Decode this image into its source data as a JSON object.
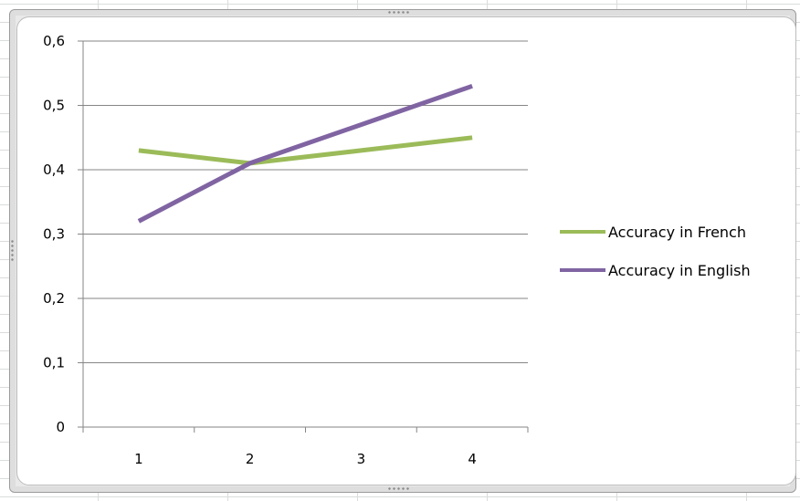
{
  "chart_data": {
    "type": "line",
    "title": "",
    "xlabel": "",
    "ylabel": "",
    "categories": [
      "1",
      "2",
      "3",
      "4"
    ],
    "ylim": [
      0,
      0.6
    ],
    "y_ticks": [
      "0",
      "0,1",
      "0,2",
      "0,3",
      "0,4",
      "0,5",
      "0,6"
    ],
    "grid": "horizontal",
    "legend_position": "right",
    "series": [
      {
        "name": "Accuracy in French",
        "values": [
          0.43,
          0.41,
          0.43,
          0.45
        ],
        "color": "#9bbb59"
      },
      {
        "name": "Accuracy in English",
        "values": [
          0.32,
          0.41,
          0.47,
          0.53
        ],
        "color": "#8064a2"
      }
    ]
  }
}
